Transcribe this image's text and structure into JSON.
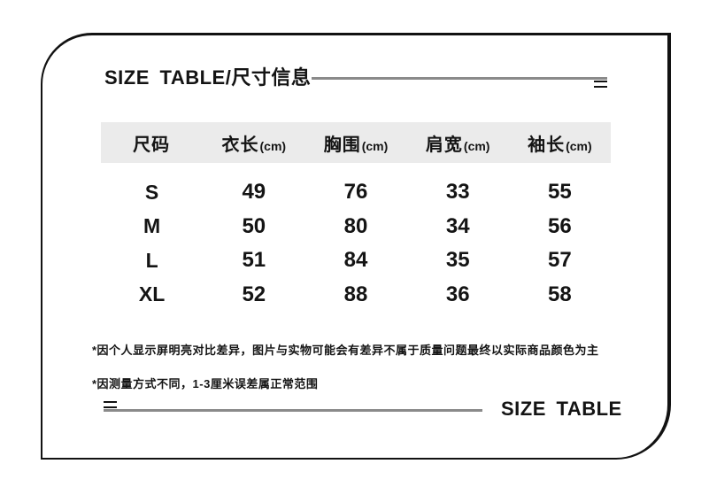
{
  "header": {
    "title": "SIZE TABLE/尺寸信息"
  },
  "size_table": {
    "columns": [
      {
        "label": "尺码",
        "unit": ""
      },
      {
        "label": "衣长",
        "unit": "(cm)"
      },
      {
        "label": "胸围",
        "unit": "(cm)"
      },
      {
        "label": "肩宽",
        "unit": "(cm)"
      },
      {
        "label": "袖长",
        "unit": "(cm)"
      }
    ],
    "rows": [
      {
        "size": "S",
        "values": [
          "49",
          "76",
          "33",
          "55"
        ]
      },
      {
        "size": "M",
        "values": [
          "50",
          "80",
          "34",
          "56"
        ]
      },
      {
        "size": "L",
        "values": [
          "51",
          "84",
          "35",
          "57"
        ]
      },
      {
        "size": "XL",
        "values": [
          "52",
          "88",
          "36",
          "58"
        ]
      }
    ]
  },
  "footnotes": [
    "*因个人显示屏明亮对比差异，图片与实物可能会有差异不属于质量问题最终以实际商品颜色为主",
    "*因测量方式不同，1-3厘米误差属正常范围"
  ],
  "footer": {
    "label": "SIZE TABLE"
  },
  "decorations": {
    "double_dash_mark": "=",
    "colors": {
      "header_band": "#ebebeb",
      "rule_line": "#8a8a8a",
      "border": "#121212",
      "text": "#141414",
      "background": "#ffffff"
    }
  }
}
